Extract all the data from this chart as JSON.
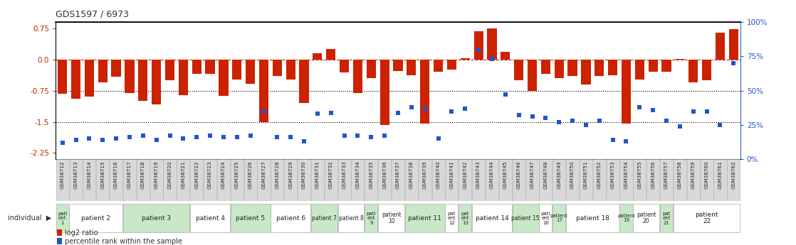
{
  "title": "GDS1597 / 6973",
  "samples": [
    "GSM38712",
    "GSM38713",
    "GSM38714",
    "GSM38715",
    "GSM38716",
    "GSM38717",
    "GSM38718",
    "GSM38719",
    "GSM38720",
    "GSM38721",
    "GSM38722",
    "GSM38723",
    "GSM38724",
    "GSM38725",
    "GSM38726",
    "GSM38727",
    "GSM38728",
    "GSM38729",
    "GSM38730",
    "GSM38731",
    "GSM38732",
    "GSM38733",
    "GSM38734",
    "GSM38735",
    "GSM38736",
    "GSM38737",
    "GSM38738",
    "GSM38739",
    "GSM38740",
    "GSM38741",
    "GSM38742",
    "GSM38743",
    "GSM38744",
    "GSM38745",
    "GSM38746",
    "GSM38747",
    "GSM38748",
    "GSM38749",
    "GSM38750",
    "GSM38751",
    "GSM38752",
    "GSM38753",
    "GSM38754",
    "GSM38755",
    "GSM38756",
    "GSM38757",
    "GSM38758",
    "GSM38759",
    "GSM38760",
    "GSM38761",
    "GSM38762"
  ],
  "log2_ratio": [
    -0.82,
    -0.95,
    -0.9,
    -0.55,
    -0.42,
    -0.8,
    -1.0,
    -1.08,
    -0.5,
    -0.85,
    -0.35,
    -0.35,
    -0.88,
    -0.48,
    -0.58,
    -1.5,
    -0.4,
    -0.48,
    -1.05,
    0.15,
    0.25,
    -0.32,
    -0.8,
    -0.45,
    -1.58,
    -0.28,
    -0.38,
    -1.55,
    -0.3,
    -0.25,
    0.03,
    0.68,
    0.75,
    0.18,
    -0.5,
    -0.75,
    -0.35,
    -0.45,
    -0.4,
    -0.6,
    -0.4,
    -0.38,
    -1.55,
    -0.48,
    -0.3,
    -0.3,
    0.02,
    -0.55,
    -0.5,
    0.65,
    0.73
  ],
  "percentile": [
    12,
    14,
    15,
    14,
    15,
    16,
    17,
    14,
    17,
    15,
    16,
    17,
    16,
    16,
    17,
    35,
    16,
    16,
    13,
    33,
    34,
    17,
    17,
    16,
    17,
    34,
    38,
    37,
    15,
    35,
    37,
    80,
    73,
    47,
    32,
    31,
    30,
    27,
    28,
    25,
    28,
    14,
    13,
    38,
    36,
    28,
    24,
    35,
    35,
    25,
    70
  ],
  "patients": [
    {
      "label": "pati\nent\n1",
      "start": 0,
      "end": 1,
      "color": "#c8e8c8"
    },
    {
      "label": "patient 2",
      "start": 1,
      "end": 5,
      "color": "#ffffff"
    },
    {
      "label": "patient 3",
      "start": 5,
      "end": 10,
      "color": "#c8e8c8"
    },
    {
      "label": "patient 4",
      "start": 10,
      "end": 13,
      "color": "#ffffff"
    },
    {
      "label": "patient 5",
      "start": 13,
      "end": 16,
      "color": "#c8e8c8"
    },
    {
      "label": "patient 6",
      "start": 16,
      "end": 19,
      "color": "#ffffff"
    },
    {
      "label": "patient 7",
      "start": 19,
      "end": 21,
      "color": "#c8e8c8"
    },
    {
      "label": "patient 8",
      "start": 21,
      "end": 23,
      "color": "#ffffff"
    },
    {
      "label": "pati\nent\n9",
      "start": 23,
      "end": 24,
      "color": "#c8e8c8"
    },
    {
      "label": "patient\n10",
      "start": 24,
      "end": 26,
      "color": "#ffffff"
    },
    {
      "label": "patient 11",
      "start": 26,
      "end": 29,
      "color": "#c8e8c8"
    },
    {
      "label": "pat\nent\n12",
      "start": 29,
      "end": 30,
      "color": "#ffffff"
    },
    {
      "label": "pat\nent\n13",
      "start": 30,
      "end": 31,
      "color": "#c8e8c8"
    },
    {
      "label": "patient 14",
      "start": 31,
      "end": 34,
      "color": "#ffffff"
    },
    {
      "label": "patient 15",
      "start": 34,
      "end": 36,
      "color": "#c8e8c8"
    },
    {
      "label": "pati\nent\n16",
      "start": 36,
      "end": 37,
      "color": "#ffffff"
    },
    {
      "label": "patient\n17",
      "start": 37,
      "end": 38,
      "color": "#c8e8c8"
    },
    {
      "label": "patient 18",
      "start": 38,
      "end": 42,
      "color": "#ffffff"
    },
    {
      "label": "patient\n19",
      "start": 42,
      "end": 43,
      "color": "#c8e8c8"
    },
    {
      "label": "patient\n20",
      "start": 43,
      "end": 45,
      "color": "#ffffff"
    },
    {
      "label": "pat\nent\n21",
      "start": 45,
      "end": 46,
      "color": "#c8e8c8"
    },
    {
      "label": "patient\n22",
      "start": 46,
      "end": 51,
      "color": "#ffffff"
    }
  ],
  "bar_color": "#cc2200",
  "dot_color": "#2255cc",
  "ylim_left": [
    -2.4,
    0.9
  ],
  "yticks_left": [
    0.75,
    0.0,
    -0.75,
    -1.5,
    -2.25
  ],
  "ylim_right": [
    0,
    100
  ],
  "yticks_right": [
    0,
    25,
    50,
    75,
    100
  ],
  "yticklabels_right": [
    "0%",
    "25%",
    "50%",
    "75%",
    "100%"
  ],
  "hlines": [
    0.0,
    -0.75,
    -1.5
  ],
  "hline_styles": [
    "dashed",
    "dotted",
    "dotted"
  ],
  "hline_colors": [
    "#cc2200",
    "#000000",
    "#000000"
  ],
  "bar_color_red": "#cc2200",
  "dot_color_blue": "#2255cc",
  "xlabel_color": "#cc2200",
  "ylabel_right_color": "#2255cc",
  "sample_box_color": "#d8d8d8",
  "sample_box_edge": "#aaaaaa",
  "individual_label": "individual",
  "legend_bar_label": "log2 ratio",
  "legend_dot_label": "percentile rank within the sample"
}
